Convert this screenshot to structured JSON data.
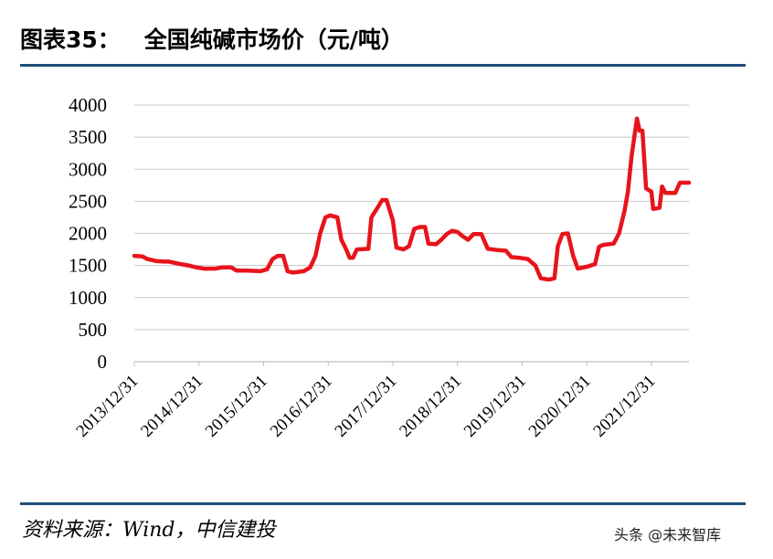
{
  "header": {
    "figure_number": "图表35：",
    "title": "全国纯碱市场价（元/吨）"
  },
  "footer": {
    "source": "资料来源：Wind，中信建投",
    "watermark": "头条 @未来智库"
  },
  "colors": {
    "line": "#e8141b",
    "rule": "#1f4e79",
    "grid": "#c8c8c8"
  },
  "chart_data": {
    "type": "line",
    "title": "全国纯碱市场价（元/吨）",
    "xlabel": "",
    "ylabel": "",
    "ylim": [
      0,
      4000
    ],
    "yticks": [
      0,
      500,
      1000,
      1500,
      2000,
      2500,
      3000,
      3500,
      4000
    ],
    "xticks": [
      "2013/12/31",
      "2014/12/31",
      "2015/12/31",
      "2016/12/31",
      "2017/12/31",
      "2018/12/31",
      "2019/12/31",
      "2020/12/31",
      "2021/12/31"
    ],
    "xlim": [
      "2013-12-31",
      "2022-07-31"
    ],
    "grid": true,
    "legend": "none",
    "series": [
      {
        "name": "",
        "points": [
          [
            "2013-12-31",
            1650
          ],
          [
            "2014-02-15",
            1640
          ],
          [
            "2014-03-15",
            1600
          ],
          [
            "2014-05-01",
            1570
          ],
          [
            "2014-06-15",
            1560
          ],
          [
            "2014-07-15",
            1560
          ],
          [
            "2014-09-01",
            1530
          ],
          [
            "2014-11-01",
            1500
          ],
          [
            "2014-12-15",
            1470
          ],
          [
            "2015-02-01",
            1450
          ],
          [
            "2015-04-01",
            1450
          ],
          [
            "2015-05-15",
            1470
          ],
          [
            "2015-07-01",
            1470
          ],
          [
            "2015-08-01",
            1420
          ],
          [
            "2015-10-01",
            1420
          ],
          [
            "2015-12-15",
            1410
          ],
          [
            "2016-01-20",
            1440
          ],
          [
            "2016-02-20",
            1600
          ],
          [
            "2016-03-20",
            1650
          ],
          [
            "2016-04-20",
            1650
          ],
          [
            "2016-05-15",
            1410
          ],
          [
            "2016-06-15",
            1390
          ],
          [
            "2016-08-15",
            1410
          ],
          [
            "2016-09-20",
            1470
          ],
          [
            "2016-10-20",
            1650
          ],
          [
            "2016-11-15",
            2000
          ],
          [
            "2016-12-15",
            2250
          ],
          [
            "2017-01-10",
            2280
          ],
          [
            "2017-02-20",
            2250
          ],
          [
            "2017-03-15",
            1900
          ],
          [
            "2017-04-10",
            1760
          ],
          [
            "2017-05-01",
            1620
          ],
          [
            "2017-05-20",
            1620
          ],
          [
            "2017-06-10",
            1750
          ],
          [
            "2017-08-15",
            1760
          ],
          [
            "2017-09-01",
            2250
          ],
          [
            "2017-10-01",
            2380
          ],
          [
            "2017-11-01",
            2520
          ],
          [
            "2017-11-25",
            2520
          ],
          [
            "2017-12-31",
            2200
          ],
          [
            "2018-01-20",
            1780
          ],
          [
            "2018-03-01",
            1750
          ],
          [
            "2018-04-01",
            1800
          ],
          [
            "2018-05-01",
            2070
          ],
          [
            "2018-06-01",
            2100
          ],
          [
            "2018-07-01",
            2100
          ],
          [
            "2018-07-20",
            1840
          ],
          [
            "2018-09-01",
            1830
          ],
          [
            "2018-10-01",
            1900
          ],
          [
            "2018-11-01",
            1990
          ],
          [
            "2018-12-01",
            2040
          ],
          [
            "2019-01-01",
            2020
          ],
          [
            "2019-02-01",
            1950
          ],
          [
            "2019-03-01",
            1900
          ],
          [
            "2019-04-01",
            1990
          ],
          [
            "2019-05-15",
            1990
          ],
          [
            "2019-06-20",
            1760
          ],
          [
            "2019-08-15",
            1740
          ],
          [
            "2019-10-01",
            1730
          ],
          [
            "2019-11-01",
            1630
          ],
          [
            "2019-12-15",
            1620
          ],
          [
            "2020-02-01",
            1600
          ],
          [
            "2020-03-15",
            1500
          ],
          [
            "2020-04-15",
            1300
          ],
          [
            "2020-06-01",
            1280
          ],
          [
            "2020-07-01",
            1300
          ],
          [
            "2020-07-20",
            1800
          ],
          [
            "2020-08-15",
            1990
          ],
          [
            "2020-09-15",
            2000
          ],
          [
            "2020-10-15",
            1650
          ],
          [
            "2020-11-10",
            1450
          ],
          [
            "2021-01-01",
            1480
          ],
          [
            "2021-02-15",
            1520
          ],
          [
            "2021-03-10",
            1790
          ],
          [
            "2021-04-01",
            1820
          ],
          [
            "2021-06-01",
            1840
          ],
          [
            "2021-07-01",
            2000
          ],
          [
            "2021-08-01",
            2350
          ],
          [
            "2021-08-20",
            2650
          ],
          [
            "2021-09-10",
            3200
          ],
          [
            "2021-10-10",
            3790
          ],
          [
            "2021-10-25",
            3600
          ],
          [
            "2021-11-10",
            3600
          ],
          [
            "2021-12-01",
            2700
          ],
          [
            "2021-12-31",
            2650
          ],
          [
            "2022-01-10",
            2380
          ],
          [
            "2022-02-15",
            2400
          ],
          [
            "2022-03-01",
            2730
          ],
          [
            "2022-03-20",
            2630
          ],
          [
            "2022-05-15",
            2630
          ],
          [
            "2022-06-10",
            2790
          ],
          [
            "2022-07-31",
            2790
          ]
        ]
      }
    ]
  }
}
